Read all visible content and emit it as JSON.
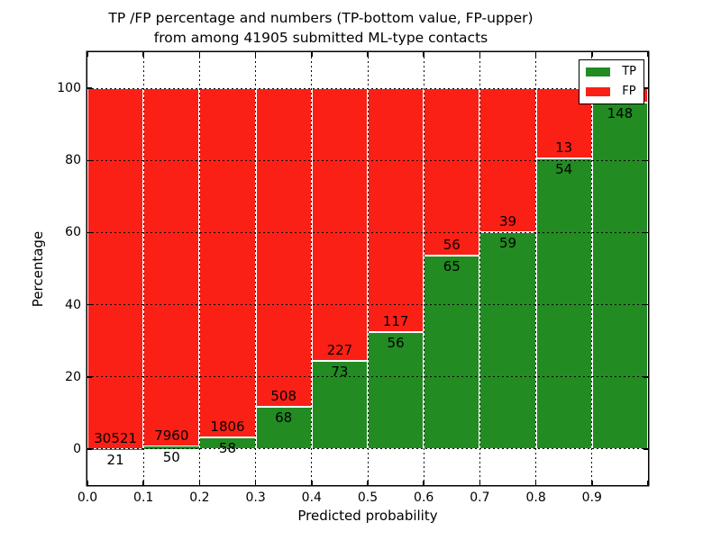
{
  "figure": {
    "title_line1": "TP /FP percentage and numbers (TP-bottom value, FP-upper)",
    "title_line2": "from among 41905 submitted ML-type contacts"
  },
  "colors": {
    "tp": "#228b22",
    "fp": "#fb2016",
    "grid": "#000000",
    "background": "#ffffff"
  },
  "chart_data": {
    "type": "bar",
    "stacked": true,
    "title": "TP /FP percentage and numbers (TP-bottom value, FP-upper)\nfrom among 41905 submitted ML-type contacts",
    "xlabel": "Predicted probability",
    "ylabel": "Percentage",
    "xlim": [
      0.0,
      1.0
    ],
    "ylim": [
      -10,
      110
    ],
    "grid": true,
    "x_tick_labels": [
      "0.0",
      "0.1",
      "0.2",
      "0.3",
      "0.4",
      "0.5",
      "0.6",
      "0.7",
      "0.8",
      "0.9"
    ],
    "y_tick_values": [
      0,
      20,
      40,
      60,
      80,
      100
    ],
    "total_contacts": 41905,
    "legend": {
      "position": "upper right",
      "entries": [
        {
          "label": "TP",
          "color": "#228b22"
        },
        {
          "label": "FP",
          "color": "#fb2016"
        }
      ]
    },
    "bins": [
      {
        "x_range": [
          0.0,
          0.1
        ],
        "tp_count": 21,
        "fp_count": 30521,
        "tp_pct": 0.07
      },
      {
        "x_range": [
          0.1,
          0.2
        ],
        "tp_count": 50,
        "fp_count": 7960,
        "tp_pct": 0.62
      },
      {
        "x_range": [
          0.2,
          0.3
        ],
        "tp_count": 58,
        "fp_count": 1806,
        "tp_pct": 3.11
      },
      {
        "x_range": [
          0.3,
          0.4
        ],
        "tp_count": 68,
        "fp_count": 508,
        "tp_pct": 11.81
      },
      {
        "x_range": [
          0.4,
          0.5
        ],
        "tp_count": 73,
        "fp_count": 227,
        "tp_pct": 24.33
      },
      {
        "x_range": [
          0.5,
          0.6
        ],
        "tp_count": 56,
        "fp_count": 117,
        "tp_pct": 32.37
      },
      {
        "x_range": [
          0.6,
          0.7
        ],
        "tp_count": 65,
        "fp_count": 56,
        "tp_pct": 53.72
      },
      {
        "x_range": [
          0.7,
          0.8
        ],
        "tp_count": 59,
        "fp_count": 39,
        "tp_pct": 60.2
      },
      {
        "x_range": [
          0.8,
          0.9
        ],
        "tp_count": 54,
        "fp_count": 13,
        "tp_pct": 80.6
      },
      {
        "x_range": [
          0.9,
          1.0
        ],
        "tp_count": 148,
        "fp_count": null,
        "tp_pct": 96.1
      }
    ]
  }
}
